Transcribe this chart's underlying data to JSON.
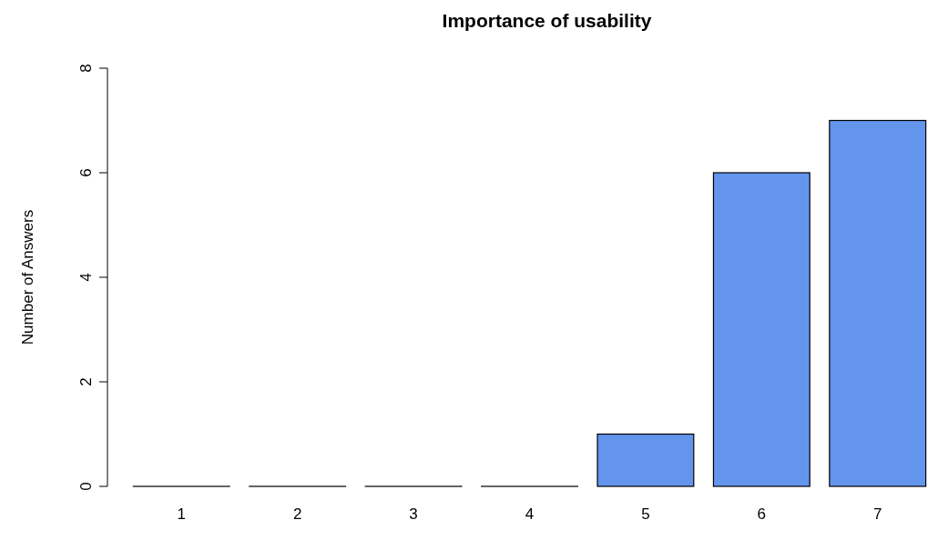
{
  "chart_data": {
    "type": "bar",
    "title": "Importance of usability",
    "ylabel": "Number of Answers",
    "categories": [
      "1",
      "2",
      "3",
      "4",
      "5",
      "6",
      "7"
    ],
    "values": [
      0,
      0,
      0,
      0,
      1,
      6,
      7
    ],
    "color": "#6495ed",
    "ylim": [
      0,
      8
    ],
    "yticks": [
      0,
      2,
      4,
      6,
      8
    ],
    "grid": false
  }
}
